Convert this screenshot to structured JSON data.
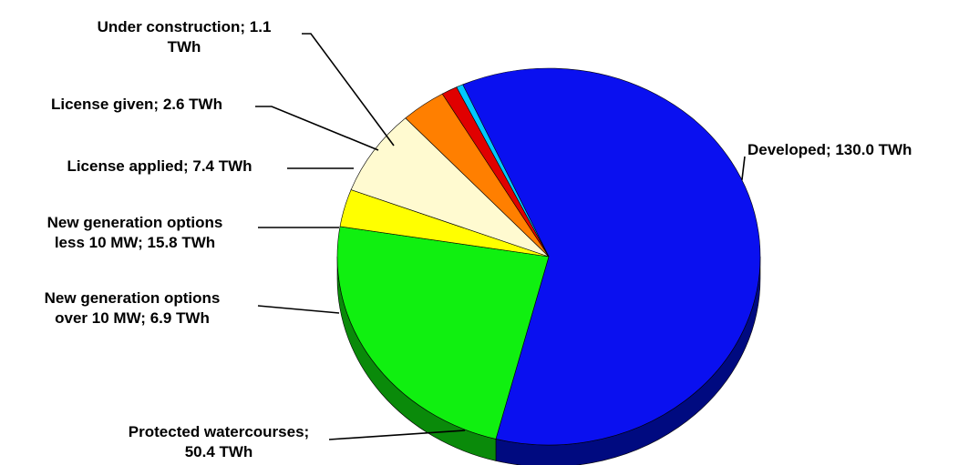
{
  "chart_data": {
    "type": "pie",
    "style": "3d",
    "unit": "TWh",
    "title": "",
    "slices": [
      {
        "name": "Developed",
        "value": 130.0,
        "label": [
          "Developed; 130.0 TWh"
        ],
        "color": "#0a10f0",
        "side_color": "#000a80"
      },
      {
        "name": "Protected watercourses",
        "value": 50.4,
        "label": [
          "Protected watercourses;",
          "50.4 TWh"
        ],
        "color": "#10f010",
        "side_color": "#0a8a0a"
      },
      {
        "name": "New generation options over 10 MW",
        "value": 6.9,
        "label": [
          "New generation options",
          "over 10 MW; 6.9 TWh"
        ],
        "color": "#ffff00",
        "side_color": "#b0a000"
      },
      {
        "name": "New generation options less 10 MW",
        "value": 15.8,
        "label": [
          "New generation options",
          "less 10 MW; 15.8 TWh"
        ],
        "color": "#fffad0",
        "side_color": "#b8b090"
      },
      {
        "name": "License applied",
        "value": 7.4,
        "label": [
          "License applied; 7.4 TWh"
        ],
        "color": "#ff7f00",
        "side_color": "#a04800"
      },
      {
        "name": "License given",
        "value": 2.6,
        "label": [
          "License given; 2.6 TWh"
        ],
        "color": "#e00000",
        "side_color": "#800000"
      },
      {
        "name": "Under construction",
        "value": 1.1,
        "label": [
          "Under construction; 1.1",
          "TWh"
        ],
        "color": "#00c8ff",
        "side_color": "#006a90"
      }
    ]
  }
}
